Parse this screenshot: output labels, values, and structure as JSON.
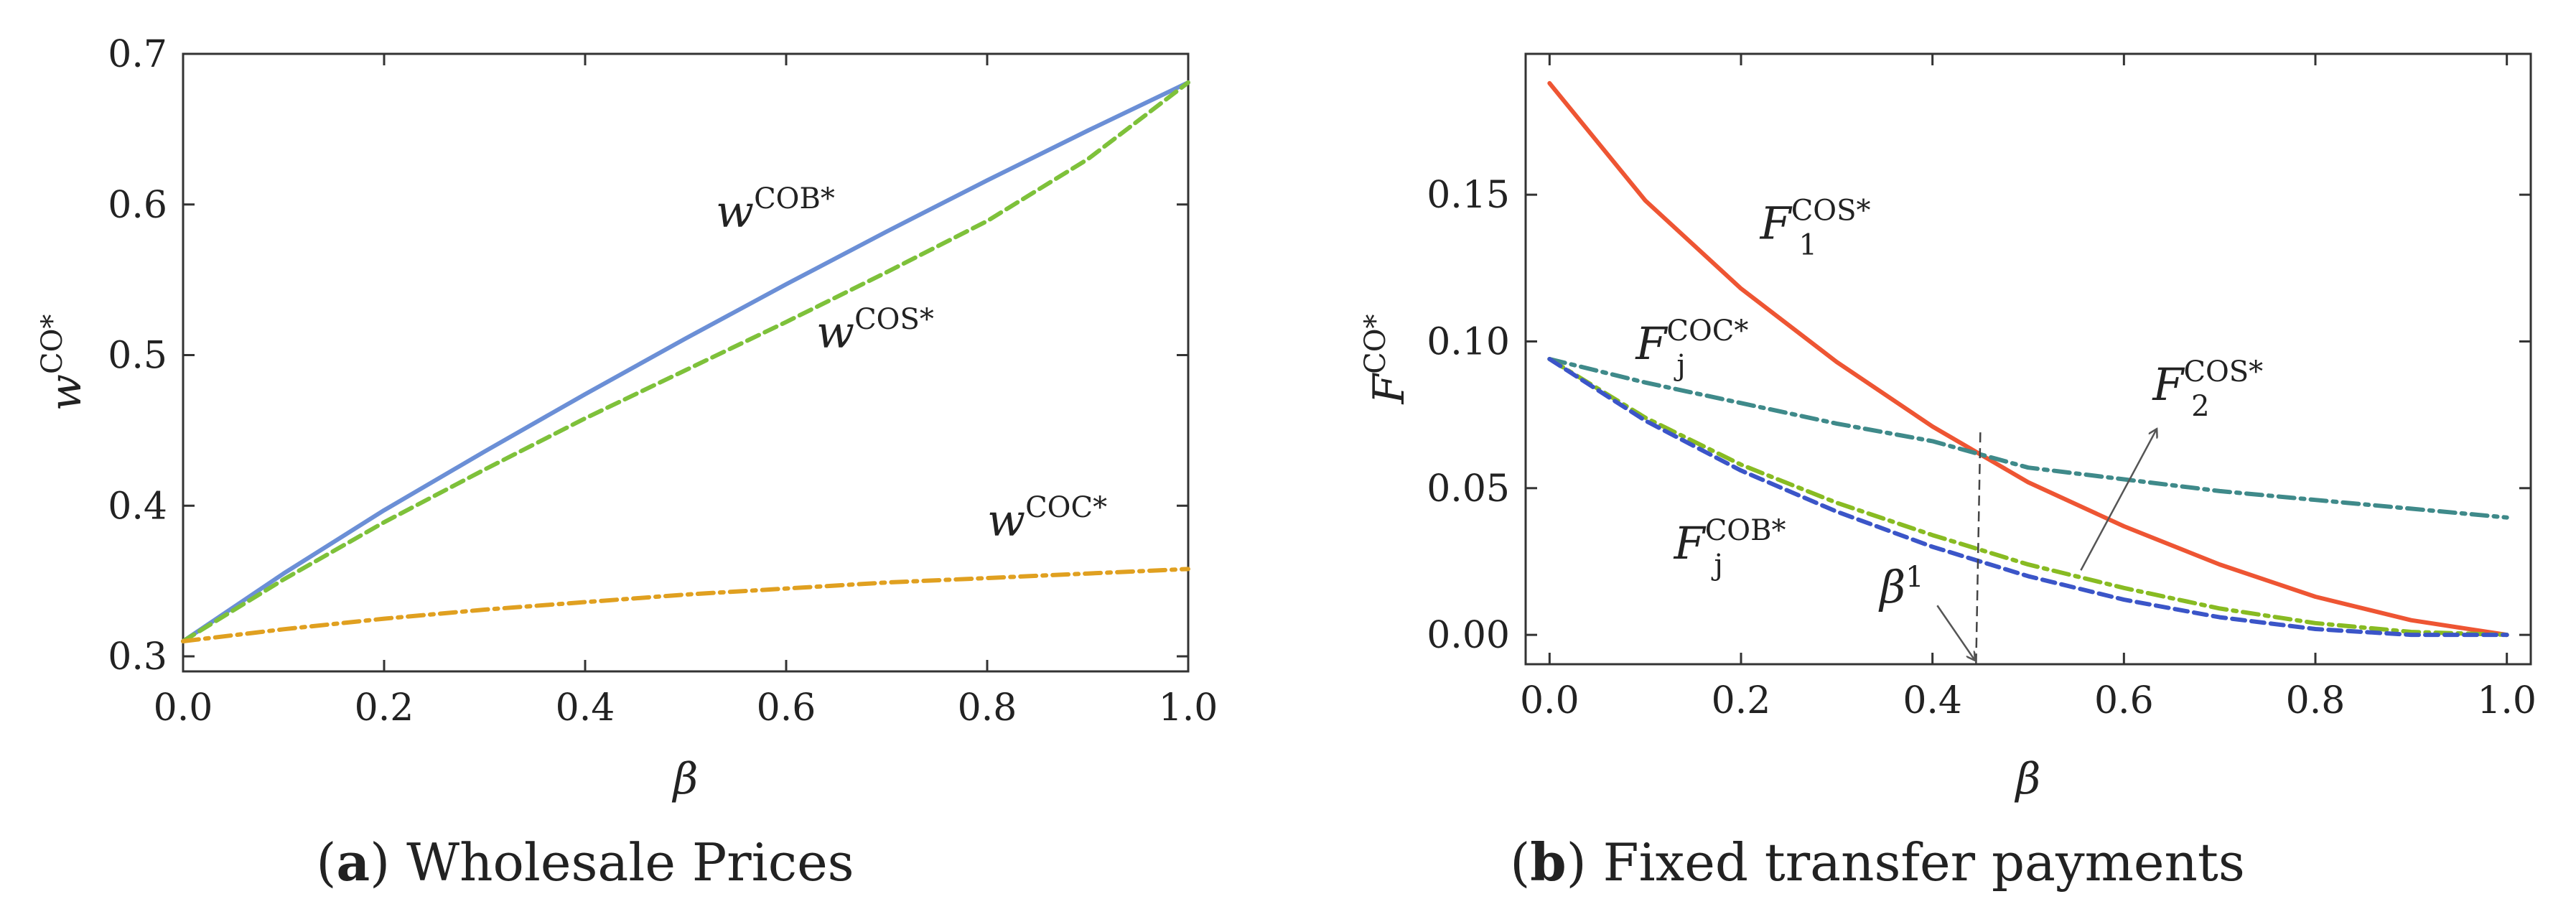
{
  "chart_data": [
    {
      "type": "line",
      "caption_letter": "a",
      "caption_text": " Wholesale Prices",
      "xlabel": "β",
      "ylabel": {
        "base": "w",
        "sup": "CO*"
      },
      "xlim": [
        0,
        1
      ],
      "ylim": [
        0.29,
        0.7
      ],
      "x_ticks": [
        0.0,
        0.2,
        0.4,
        0.6,
        0.8,
        1.0
      ],
      "x_tick_labels": [
        "0.0",
        "0.2",
        "0.4",
        "0.6",
        "0.8",
        "1.0"
      ],
      "y_ticks": [
        0.3,
        0.4,
        0.5,
        0.6,
        0.7
      ],
      "y_tick_labels": [
        "0.3",
        "0.4",
        "0.5",
        "0.6",
        "0.7"
      ],
      "series": [
        {
          "name": "w^COB*",
          "label_base": "w",
          "label_sup": "COB*",
          "color": "#6b8fd6",
          "style": "solid",
          "x": [
            0,
            0.1,
            0.2,
            0.3,
            0.4,
            0.5,
            0.6,
            0.7,
            0.8,
            0.9,
            1.0
          ],
          "values": [
            0.31,
            0.355,
            0.397,
            0.436,
            0.474,
            0.511,
            0.547,
            0.582,
            0.616,
            0.649,
            0.681
          ]
        },
        {
          "name": "w^COS*",
          "label_base": "w",
          "label_sup": "COS*",
          "color": "#7ec13a",
          "style": "dashed",
          "x": [
            0,
            0.1,
            0.2,
            0.3,
            0.4,
            0.5,
            0.6,
            0.7,
            0.8,
            0.9,
            1.0
          ],
          "values": [
            0.31,
            0.351,
            0.389,
            0.424,
            0.458,
            0.49,
            0.522,
            0.555,
            0.589,
            0.63,
            0.681
          ]
        },
        {
          "name": "w^COC*",
          "label_base": "w",
          "label_sup": "COC*",
          "color": "#e0a020",
          "style": "dashdot",
          "x": [
            0,
            0.1,
            0.2,
            0.3,
            0.4,
            0.5,
            0.6,
            0.7,
            0.8,
            0.9,
            1.0
          ],
          "values": [
            0.31,
            0.318,
            0.325,
            0.331,
            0.336,
            0.341,
            0.345,
            0.349,
            0.352,
            0.355,
            0.358
          ]
        }
      ],
      "labels": [
        {
          "series": 0,
          "x": 0.53,
          "y": 0.585
        },
        {
          "series": 1,
          "x": 0.63,
          "y": 0.505
        },
        {
          "series": 2,
          "x": 0.8,
          "y": 0.38
        }
      ]
    },
    {
      "type": "line",
      "caption_letter": "b",
      "caption_text": " Fixed transfer payments",
      "xlabel": "β",
      "ylabel": {
        "base": "F",
        "sup": "CO*"
      },
      "xlim": [
        -0.025,
        1.025
      ],
      "ylim": [
        -0.01,
        0.198
      ],
      "x_ticks": [
        0.0,
        0.2,
        0.4,
        0.6,
        0.8,
        1.0
      ],
      "x_tick_labels": [
        "0.0",
        "0.2",
        "0.4",
        "0.6",
        "0.8",
        "1.0"
      ],
      "y_ticks": [
        0.0,
        0.05,
        0.1,
        0.15
      ],
      "y_tick_labels": [
        "0.00",
        "0.05",
        "0.10",
        "0.15"
      ],
      "series": [
        {
          "name": "F1^COS*",
          "label_base": "F",
          "label_sub": "1",
          "label_sup": "COS*",
          "color": "#ee5533",
          "style": "solid",
          "x": [
            0,
            0.1,
            0.2,
            0.3,
            0.4,
            0.5,
            0.6,
            0.7,
            0.8,
            0.9,
            1.0
          ],
          "values": [
            0.188,
            0.148,
            0.118,
            0.093,
            0.071,
            0.052,
            0.037,
            0.024,
            0.013,
            0.005,
            0.0
          ]
        },
        {
          "name": "Fj^COC*",
          "label_base": "F",
          "label_sub": "j",
          "label_sup": "COC*",
          "color": "#3f8a8a",
          "style": "dashdot",
          "x": [
            0,
            0.1,
            0.2,
            0.3,
            0.4,
            0.5,
            0.6,
            0.7,
            0.8,
            0.9,
            1.0
          ],
          "values": [
            0.094,
            0.086,
            0.079,
            0.072,
            0.066,
            0.057,
            0.053,
            0.049,
            0.046,
            0.043,
            0.04
          ]
        },
        {
          "name": "F2^COS*",
          "label_base": "F",
          "label_sub": "2",
          "label_sup": "COS*",
          "color": "#88bb22",
          "style": "dashdot",
          "x": [
            0,
            0.1,
            0.2,
            0.3,
            0.4,
            0.5,
            0.6,
            0.7,
            0.8,
            0.9,
            1.0
          ],
          "values": [
            0.094,
            0.074,
            0.058,
            0.045,
            0.034,
            0.024,
            0.016,
            0.009,
            0.004,
            0.001,
            0.0
          ]
        },
        {
          "name": "Fj^COB*",
          "label_base": "F",
          "label_sub": "j",
          "label_sup": "COB*",
          "color": "#3b55c8",
          "style": "dashed",
          "x": [
            0,
            0.1,
            0.2,
            0.3,
            0.4,
            0.5,
            0.6,
            0.7,
            0.8,
            0.9,
            1.0
          ],
          "values": [
            0.094,
            0.073,
            0.056,
            0.042,
            0.03,
            0.02,
            0.012,
            0.006,
            0.002,
            0.0,
            0.0
          ]
        }
      ],
      "labels": [
        {
          "series": 0,
          "x": 0.22,
          "y": 0.135
        },
        {
          "series": 1,
          "x": 0.09,
          "y": 0.094
        },
        {
          "series": 2,
          "x": 0.63,
          "y": 0.08
        },
        {
          "series": 3,
          "x": 0.13,
          "y": 0.026
        }
      ],
      "threshold": {
        "label_base": "β",
        "label_sup": "1",
        "x": 0.45,
        "y_top": 0.069
      },
      "arrow": {
        "from_x": 0.555,
        "from_y": 0.022,
        "to_x": 0.634,
        "to_y": 0.07
      }
    }
  ]
}
